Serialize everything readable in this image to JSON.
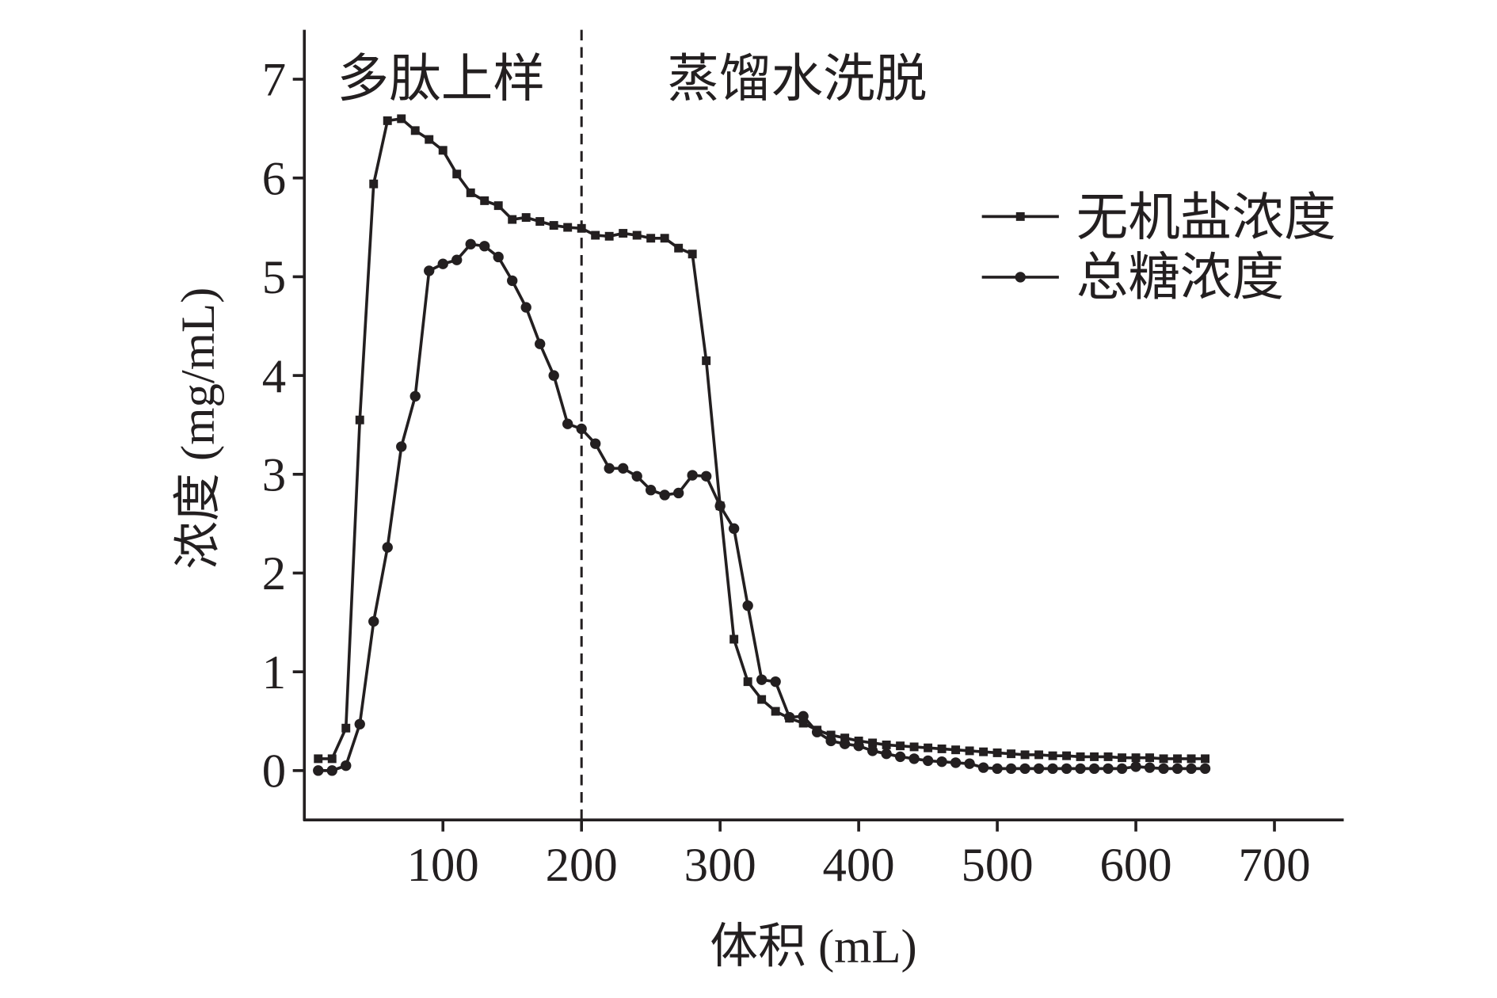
{
  "chart_data": {
    "type": "line",
    "xlabel": "体积 (mL)",
    "ylabel": "浓度 (mg/mL)",
    "xlim": [
      0,
      750
    ],
    "ylim": [
      -0.5,
      7.5
    ],
    "xticks": [
      100,
      200,
      300,
      400,
      500,
      600,
      700
    ],
    "yticks": [
      0,
      1,
      2,
      3,
      4,
      5,
      6,
      7
    ],
    "grid": false,
    "legend": "upper-right",
    "vline_x": 200,
    "vline_style": "dashed",
    "annotations": [
      {
        "text": "多肽上样"
      },
      {
        "text": "蒸馏水洗脱"
      }
    ],
    "x": [
      10,
      20,
      30,
      40,
      50,
      60,
      70,
      80,
      90,
      100,
      110,
      120,
      130,
      140,
      150,
      160,
      170,
      180,
      190,
      200,
      210,
      220,
      230,
      240,
      250,
      260,
      270,
      280,
      290,
      300,
      310,
      320,
      330,
      340,
      350,
      360,
      370,
      380,
      390,
      400,
      410,
      420,
      430,
      440,
      450,
      460,
      470,
      480,
      490,
      500,
      510,
      520,
      530,
      540,
      550,
      560,
      570,
      580,
      590,
      600,
      610,
      620,
      630,
      640,
      650
    ],
    "series": [
      {
        "name": "无机盐浓度",
        "marker": "square",
        "color": "#231f20",
        "values": [
          0.12,
          0.12,
          0.43,
          3.55,
          5.94,
          6.58,
          6.6,
          6.48,
          6.39,
          6.28,
          6.04,
          5.85,
          5.77,
          5.72,
          5.58,
          5.6,
          5.56,
          5.52,
          5.5,
          5.49,
          5.42,
          5.41,
          5.44,
          5.42,
          5.39,
          5.39,
          5.29,
          5.23,
          4.15,
          2.68,
          1.33,
          0.9,
          0.72,
          0.6,
          0.53,
          0.48,
          0.41,
          0.36,
          0.33,
          0.3,
          0.28,
          0.26,
          0.25,
          0.24,
          0.23,
          0.22,
          0.21,
          0.2,
          0.19,
          0.18,
          0.17,
          0.16,
          0.16,
          0.15,
          0.15,
          0.14,
          0.14,
          0.14,
          0.13,
          0.13,
          0.13,
          0.12,
          0.12,
          0.12,
          0.12
        ]
      },
      {
        "name": "总糖浓度",
        "marker": "circle",
        "color": "#231f20",
        "values": [
          0.0,
          0.0,
          0.05,
          0.47,
          1.51,
          2.26,
          3.28,
          3.79,
          5.06,
          5.13,
          5.17,
          5.33,
          5.31,
          5.2,
          4.96,
          4.69,
          4.32,
          4.0,
          3.51,
          3.46,
          3.31,
          3.06,
          3.06,
          2.98,
          2.84,
          2.79,
          2.81,
          2.99,
          2.98,
          2.68,
          2.45,
          1.67,
          0.92,
          0.9,
          0.54,
          0.55,
          0.39,
          0.3,
          0.27,
          0.25,
          0.2,
          0.17,
          0.14,
          0.12,
          0.1,
          0.09,
          0.08,
          0.07,
          0.03,
          0.02,
          0.02,
          0.02,
          0.02,
          0.02,
          0.02,
          0.02,
          0.02,
          0.02,
          0.02,
          0.04,
          0.03,
          0.02,
          0.02,
          0.02,
          0.02
        ]
      }
    ]
  }
}
